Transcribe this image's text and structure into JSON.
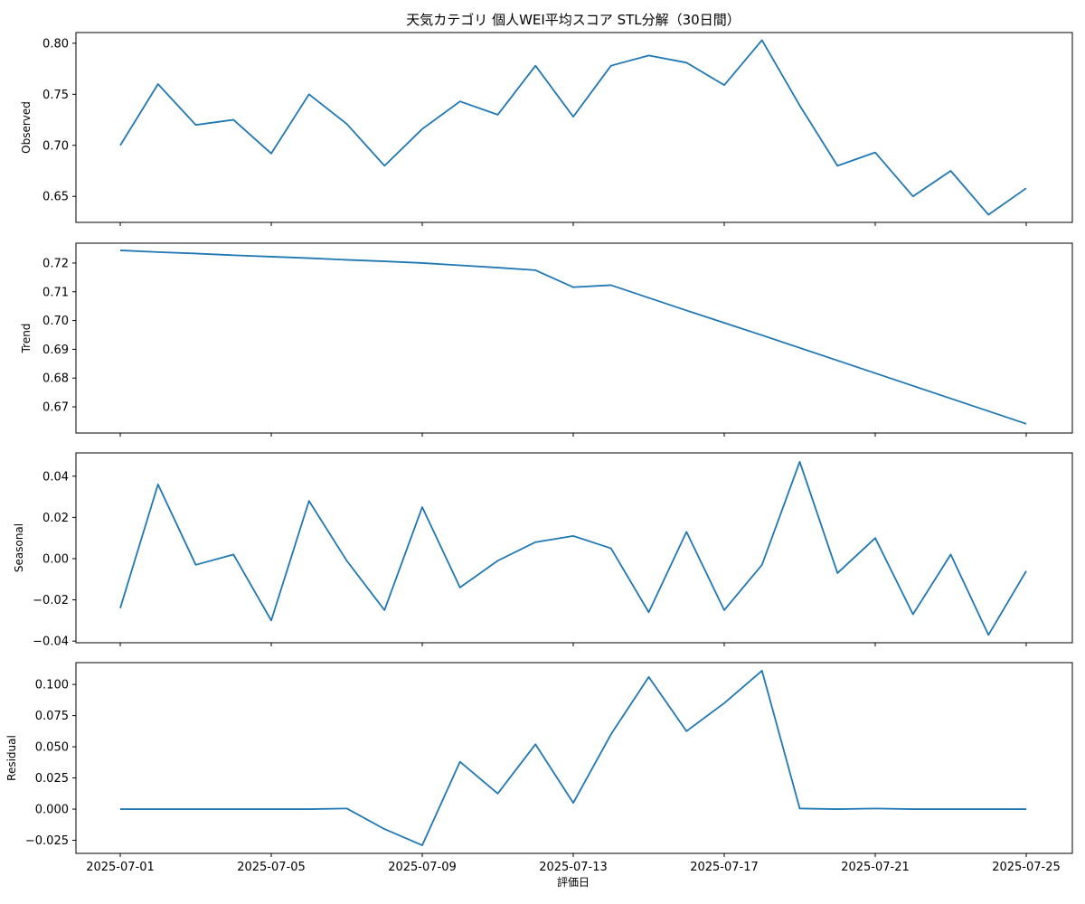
{
  "chart_data": {
    "type": "line",
    "title": "天気カテゴリ 個人WEI平均スコア STL分解（30日間）",
    "xlabel": "評価日",
    "x": [
      "2025-07-01",
      "2025-07-02",
      "2025-07-03",
      "2025-07-04",
      "2025-07-05",
      "2025-07-06",
      "2025-07-07",
      "2025-07-08",
      "2025-07-09",
      "2025-07-10",
      "2025-07-11",
      "2025-07-12",
      "2025-07-13",
      "2025-07-14",
      "2025-07-15",
      "2025-07-16",
      "2025-07-17",
      "2025-07-18",
      "2025-07-19",
      "2025-07-20",
      "2025-07-21",
      "2025-07-22",
      "2025-07-23",
      "2025-07-24",
      "2025-07-25"
    ],
    "xticks": [
      "2025-07-01",
      "2025-07-05",
      "2025-07-09",
      "2025-07-13",
      "2025-07-17",
      "2025-07-21",
      "2025-07-25"
    ],
    "line_color": "#1f77b4",
    "panels": [
      {
        "ylabel": "Observed",
        "yticks": [
          "0.65",
          "0.70",
          "0.75",
          "0.80"
        ],
        "ylim": [
          0.6245,
          0.8105
        ],
        "values": [
          0.7,
          0.76,
          0.72,
          0.725,
          0.692,
          0.75,
          0.721,
          0.68,
          0.716,
          0.743,
          0.73,
          0.778,
          0.728,
          0.778,
          0.788,
          0.781,
          0.759,
          0.803,
          0.739,
          0.68,
          0.693,
          0.65,
          0.675,
          0.632,
          0.658
        ]
      },
      {
        "ylabel": "Trend",
        "yticks": [
          "0.67",
          "0.68",
          "0.69",
          "0.70",
          "0.71",
          "0.72"
        ],
        "ylim": [
          0.6609,
          0.7269
        ],
        "values": [
          0.7244,
          0.7238,
          0.7233,
          0.7227,
          0.7222,
          0.7217,
          0.7211,
          0.7206,
          0.72,
          0.7192,
          0.7184,
          0.7175,
          0.7116,
          0.7123,
          0.7079,
          0.7035,
          0.6992,
          0.6949,
          0.6905,
          0.6861,
          0.6817,
          0.6773,
          0.6729,
          0.6685,
          0.6641
        ]
      },
      {
        "ylabel": "Seasonal",
        "yticks": [
          "−0.04",
          "−0.02",
          "0.00",
          "0.02",
          "0.04"
        ],
        "ylim": [
          -0.0408,
          0.0513
        ],
        "values": [
          -0.024,
          0.036,
          -0.003,
          0.002,
          -0.03,
          0.028,
          -0.001,
          -0.025,
          0.025,
          -0.014,
          -0.001,
          0.008,
          0.011,
          0.005,
          -0.026,
          0.013,
          -0.025,
          -0.003,
          0.047,
          -0.007,
          0.01,
          -0.027,
          0.002,
          -0.037,
          -0.006
        ]
      },
      {
        "ylabel": "Residual",
        "yticks": [
          "−0.025",
          "0.000",
          "0.025",
          "0.050",
          "0.075",
          "0.100"
        ],
        "ylim": [
          -0.0355,
          0.1175
        ],
        "values": [
          0.0,
          0.0,
          0.0,
          0.0,
          0.0,
          0.0,
          0.0005,
          -0.016,
          -0.029,
          0.038,
          0.0125,
          0.052,
          0.005,
          0.06,
          0.106,
          0.0625,
          0.085,
          0.111,
          0.0005,
          0.0,
          0.0005,
          0.0,
          0.0,
          0.0,
          0.0
        ]
      }
    ]
  }
}
